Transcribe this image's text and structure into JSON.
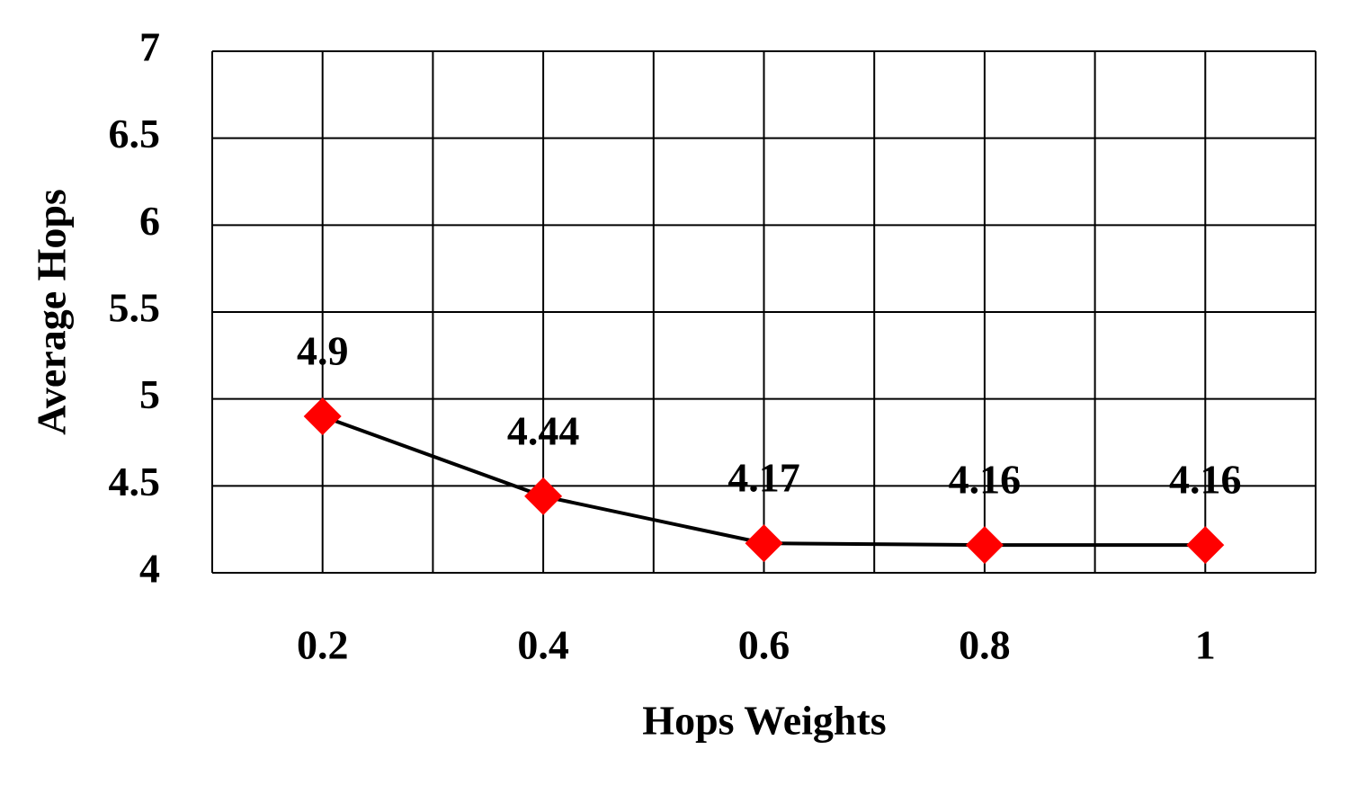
{
  "chart_data": {
    "type": "line",
    "x_label": "Hops Weights",
    "y_label": "Average Hops",
    "categories": [
      "0.2",
      "0.4",
      "0.6",
      "0.8",
      "1"
    ],
    "series": [
      {
        "name": "Average Hops",
        "color": "#000000",
        "marker_color": "#ff0000",
        "values": [
          4.9,
          4.44,
          4.17,
          4.16,
          4.16
        ]
      }
    ],
    "ylim": [
      4,
      7
    ],
    "yticks": [
      4,
      4.5,
      5,
      5.5,
      6,
      6.5,
      7
    ],
    "grid": true
  }
}
